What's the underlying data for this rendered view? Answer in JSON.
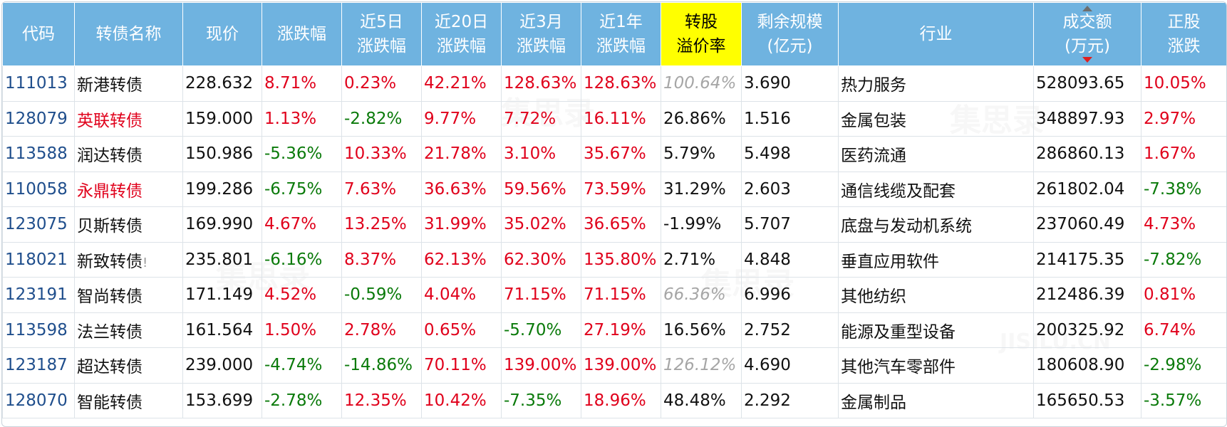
{
  "watermark": "集思录",
  "watermark_sub": "JISILU.CN",
  "headers": [
    "代码",
    "转债名称",
    "现价",
    "涨跌幅",
    "近5日\n涨跌幅",
    "近20日\n涨跌幅",
    "近3月\n涨跌幅",
    "近1年\n涨跌幅",
    "转股\n溢价率",
    "剩余规模\n(亿元)",
    "行业",
    "成交额\n(万元)",
    "正股\n涨跌"
  ],
  "sort_column": "成交额",
  "sort_direction": "descending",
  "highlight_header": "转股溢价率",
  "colors": {
    "header_bg": "#6fb3e0",
    "highlight_bg": "#ffff00",
    "up": "#e0001b",
    "down": "#0a7a0a",
    "code": "#1f4e8c",
    "muted": "#a6a6a6"
  },
  "rows": [
    {
      "code": "111013",
      "name": "新港转债",
      "name_color": "normal",
      "name_badge": "",
      "price": "228.632",
      "chg": "8.71%",
      "chg5": "0.23%",
      "chg20": "42.21%",
      "chg3m": "128.63%",
      "chg1y": "128.63%",
      "premium": "100.64%",
      "premium_style": "gray",
      "remain": "3.690",
      "industry": "热力服务",
      "volume": "528093.65",
      "stock_chg": "10.05%"
    },
    {
      "code": "128079",
      "name": "英联转债",
      "name_color": "red",
      "name_badge": "",
      "price": "159.000",
      "chg": "1.13%",
      "chg5": "-2.82%",
      "chg20": "9.77%",
      "chg3m": "7.72%",
      "chg1y": "16.11%",
      "premium": "26.86%",
      "premium_style": "normal",
      "remain": "1.516",
      "industry": "金属包装",
      "volume": "348897.93",
      "stock_chg": "2.97%"
    },
    {
      "code": "113588",
      "name": "润达转债",
      "name_color": "normal",
      "name_badge": "",
      "price": "150.986",
      "chg": "-5.36%",
      "chg5": "10.33%",
      "chg20": "21.78%",
      "chg3m": "3.10%",
      "chg1y": "35.67%",
      "premium": "5.79%",
      "premium_style": "normal",
      "remain": "5.498",
      "industry": "医药流通",
      "volume": "286860.13",
      "stock_chg": "1.67%"
    },
    {
      "code": "110058",
      "name": "永鼎转债",
      "name_color": "red",
      "name_badge": "",
      "price": "199.286",
      "chg": "-6.75%",
      "chg5": "7.63%",
      "chg20": "36.63%",
      "chg3m": "59.56%",
      "chg1y": "73.59%",
      "premium": "31.29%",
      "premium_style": "normal",
      "remain": "2.603",
      "industry": "通信线缆及配套",
      "volume": "261802.04",
      "stock_chg": "-7.38%"
    },
    {
      "code": "123075",
      "name": "贝斯转债",
      "name_color": "normal",
      "name_badge": "",
      "price": "169.990",
      "chg": "4.67%",
      "chg5": "13.25%",
      "chg20": "31.99%",
      "chg3m": "35.02%",
      "chg1y": "36.65%",
      "premium": "-1.99%",
      "premium_style": "normal",
      "remain": "5.707",
      "industry": "底盘与发动机系统",
      "volume": "237060.49",
      "stock_chg": "4.73%"
    },
    {
      "code": "118021",
      "name": "新致转债",
      "name_color": "normal",
      "name_badge": "!",
      "price": "235.801",
      "chg": "-6.16%",
      "chg5": "8.37%",
      "chg20": "62.13%",
      "chg3m": "62.30%",
      "chg1y": "135.80%",
      "premium": "2.71%",
      "premium_style": "normal",
      "remain": "4.848",
      "industry": "垂直应用软件",
      "volume": "214175.35",
      "stock_chg": "-7.82%"
    },
    {
      "code": "123191",
      "name": "智尚转债",
      "name_color": "normal",
      "name_badge": "",
      "price": "171.149",
      "chg": "4.52%",
      "chg5": "-0.59%",
      "chg20": "4.04%",
      "chg3m": "71.15%",
      "chg1y": "71.15%",
      "premium": "66.36%",
      "premium_style": "gray",
      "remain": "6.996",
      "industry": "其他纺织",
      "volume": "212486.39",
      "stock_chg": "0.81%"
    },
    {
      "code": "113598",
      "name": "法兰转债",
      "name_color": "normal",
      "name_badge": "",
      "price": "161.564",
      "chg": "1.50%",
      "chg5": "2.78%",
      "chg20": "0.65%",
      "chg3m": "-5.70%",
      "chg1y": "27.19%",
      "premium": "16.56%",
      "premium_style": "normal",
      "remain": "2.752",
      "industry": "能源及重型设备",
      "volume": "200325.92",
      "stock_chg": "6.74%"
    },
    {
      "code": "123187",
      "name": "超达转债",
      "name_color": "normal",
      "name_badge": "",
      "price": "239.000",
      "chg": "-4.74%",
      "chg5": "-14.86%",
      "chg20": "70.11%",
      "chg3m": "139.00%",
      "chg1y": "139.00%",
      "premium": "126.12%",
      "premium_style": "gray",
      "remain": "4.690",
      "industry": "其他汽车零部件",
      "volume": "180608.90",
      "stock_chg": "-2.98%"
    },
    {
      "code": "128070",
      "name": "智能转债",
      "name_color": "normal",
      "name_badge": "",
      "price": "153.699",
      "chg": "-2.78%",
      "chg5": "12.35%",
      "chg20": "10.42%",
      "chg3m": "-7.35%",
      "chg1y": "18.96%",
      "premium": "48.48%",
      "premium_style": "normal",
      "remain": "2.292",
      "industry": "金属制品",
      "volume": "165650.53",
      "stock_chg": "-3.57%"
    }
  ]
}
